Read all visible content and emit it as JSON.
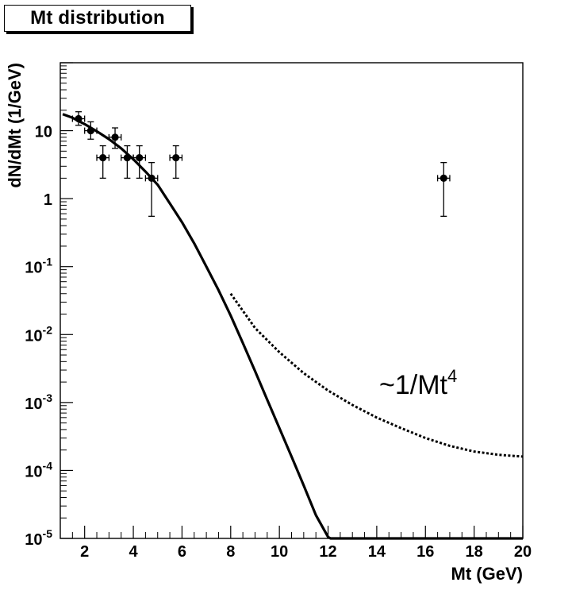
{
  "chart_data": {
    "type": "scatter",
    "title": "Mt distribution",
    "xlabel": "Mt (GeV)",
    "ylabel": "dN/dMt (1/GeV)",
    "xlim": [
      1,
      20
    ],
    "ylim": [
      1e-05,
      100
    ],
    "yscale": "log",
    "grid": false,
    "x_ticks": [
      2,
      4,
      6,
      8,
      10,
      12,
      14,
      16,
      18,
      20
    ],
    "y_ticks": [
      {
        "value": 10,
        "base": "10",
        "exp": ""
      },
      {
        "value": 1,
        "base": "1",
        "exp": ""
      },
      {
        "value": 0.1,
        "base": "10",
        "exp": "-1"
      },
      {
        "value": 0.01,
        "base": "10",
        "exp": "-2"
      },
      {
        "value": 0.001,
        "base": "10",
        "exp": "-3"
      },
      {
        "value": 0.0001,
        "base": "10",
        "exp": "-4"
      },
      {
        "value": 1e-05,
        "base": "10",
        "exp": "-5"
      }
    ],
    "points": [
      {
        "x": 1.75,
        "y": 15,
        "xerr": 0.25,
        "ylo": 12,
        "yhi": 19
      },
      {
        "x": 2.25,
        "y": 10,
        "xerr": 0.25,
        "ylo": 7.5,
        "yhi": 13.5
      },
      {
        "x": 2.75,
        "y": 4,
        "xerr": 0.25,
        "ylo": 2,
        "yhi": 6
      },
      {
        "x": 3.25,
        "y": 8,
        "xerr": 0.25,
        "ylo": 5.5,
        "yhi": 11
      },
      {
        "x": 3.75,
        "y": 4,
        "xerr": 0.25,
        "ylo": 2,
        "yhi": 6
      },
      {
        "x": 4.25,
        "y": 4,
        "xerr": 0.25,
        "ylo": 2,
        "yhi": 6
      },
      {
        "x": 4.75,
        "y": 2,
        "xerr": 0.25,
        "ylo": 0.55,
        "yhi": 3.4
      },
      {
        "x": 5.75,
        "y": 4,
        "xerr": 0.25,
        "ylo": 2,
        "yhi": 6
      },
      {
        "x": 16.75,
        "y": 2,
        "xerr": 0.25,
        "ylo": 0.55,
        "yhi": 3.4
      }
    ],
    "fit_curve": {
      "style": "solid",
      "x": [
        1.1,
        1.5,
        2,
        2.5,
        3,
        3.5,
        4,
        4.5,
        5,
        5.5,
        6,
        6.5,
        7,
        7.5,
        8,
        8.5,
        9,
        9.5,
        10,
        10.5,
        11,
        11.5,
        12,
        12.1,
        13,
        14,
        15,
        16,
        17,
        18,
        19,
        20
      ],
      "y": [
        17.5,
        15.5,
        12.5,
        9.8,
        7.5,
        5.5,
        3.8,
        2.5,
        1.6,
        0.85,
        0.45,
        0.22,
        0.1,
        0.045,
        0.019,
        0.0075,
        0.0029,
        0.0011,
        0.00042,
        0.00016,
        6e-05,
        2.2e-05,
        1.05e-05,
        1e-05,
        1e-05,
        1e-05,
        1e-05,
        1e-05,
        1e-05,
        1e-05,
        1e-05,
        1e-05
      ]
    },
    "powerlaw_curve": {
      "style": "dotted",
      "x": [
        8,
        9,
        10,
        11,
        12,
        13,
        14,
        15,
        16,
        17,
        18,
        19,
        20
      ],
      "y": [
        0.04,
        0.0125,
        0.0055,
        0.0027,
        0.0015,
        0.00092,
        0.0006,
        0.00042,
        0.0003,
        0.00023,
        0.00019,
        0.00017,
        0.00016
      ]
    },
    "annotation": {
      "base": "~1/Mt",
      "exp": "4"
    }
  }
}
